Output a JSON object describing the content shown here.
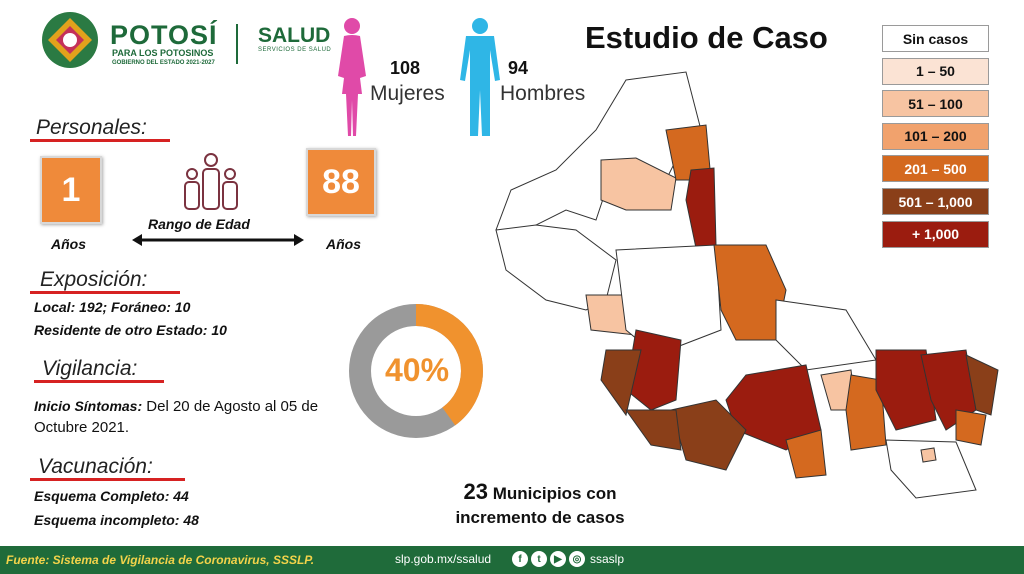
{
  "brand": {
    "title": "POTOSÍ",
    "subtitle": "PARA LOS POTOSINOS",
    "gov": "GOBIERNO DEL ESTADO 2021-2027",
    "salud": "SALUD",
    "salud_sub": "SERVICIOS DE SALUD"
  },
  "gender": {
    "women_count": "108",
    "women_label": "Mujeres",
    "men_count": "94",
    "men_label": "Hombres",
    "women_color": "#e04aa8",
    "men_color": "#2fb6e6"
  },
  "title": "Estudio de Caso",
  "personales": {
    "heading": "Personales:",
    "min_age": "1",
    "max_age": "88",
    "years_label": "Años",
    "range_label": "Rango de Edad"
  },
  "exposicion": {
    "heading": "Exposición:",
    "line1": "Local:  192; Foráneo: 10",
    "line2": "Residente de otro Estado: 10"
  },
  "vigilancia": {
    "heading": "Vigilancia:",
    "label": "Inicio Síntomas:",
    "text": " Del 20 de Agosto al 05 de Octubre 2021."
  },
  "vacunacion": {
    "heading": "Vacunación:",
    "line1": "Esquema Completo: 44",
    "line2": "Esquema incompleto: 48"
  },
  "donut": {
    "percent_label": "40%",
    "percent": 40,
    "fill_color": "#f0922e",
    "track_color": "#9a9a9a"
  },
  "municipios": {
    "count": "23",
    "line1": "Municipios con",
    "line2": "incremento de casos"
  },
  "legend": [
    {
      "label": "Sin casos",
      "color": "#ffffff",
      "text_color": "#111111"
    },
    {
      "label": "1 – 50",
      "color": "#fbe3d4",
      "text_color": "#111111"
    },
    {
      "label": "51 – 100",
      "color": "#f7c4a2",
      "text_color": "#111111"
    },
    {
      "label": "101 – 200",
      "color": "#f1a26d",
      "text_color": "#111111"
    },
    {
      "label": "201 – 500",
      "color": "#d4691f",
      "text_color": "#ffffff"
    },
    {
      "label": "501 – 1,000",
      "color": "#8a3f19",
      "text_color": "#ffffff"
    },
    {
      "label": "+ 1,000",
      "color": "#9b1c0f",
      "text_color": "#ffffff"
    }
  ],
  "footer": {
    "source": "Fuente: Sistema de Vigilancia de Coronavirus, SSSLP.",
    "url": "slp.gob.mx/ssalud",
    "handle": "ssaslp",
    "social_icons": [
      "facebook-icon",
      "twitter-icon",
      "youtube-icon",
      "instagram-icon"
    ]
  }
}
